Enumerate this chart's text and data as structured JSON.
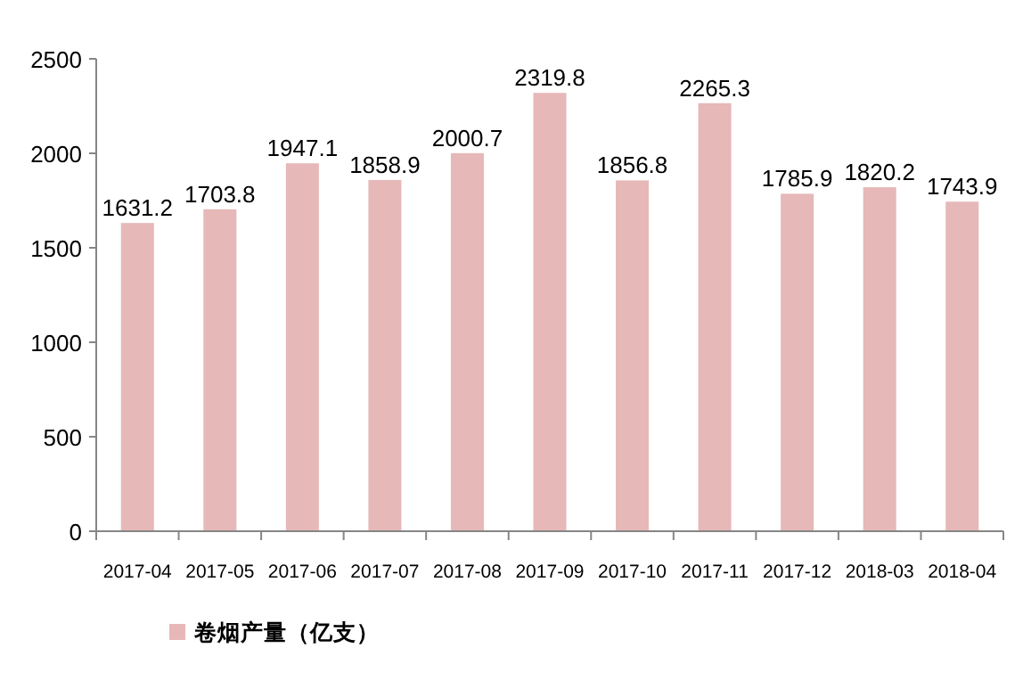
{
  "chart_data": {
    "type": "bar",
    "categories": [
      "2017-04",
      "2017-05",
      "2017-06",
      "2017-07",
      "2017-08",
      "2017-09",
      "2017-10",
      "2017-11",
      "2017-12",
      "2018-03",
      "2018-04"
    ],
    "series": [
      {
        "name": "卷烟产量（亿支）",
        "color": "#e6b8b7",
        "values": [
          1631.2,
          1703.8,
          1947.1,
          1858.9,
          2000.7,
          2319.8,
          1856.8,
          2265.3,
          1785.9,
          1820.2,
          1743.9
        ]
      }
    ],
    "ylim": [
      0,
      2500
    ],
    "yticks": [
      0,
      500,
      1000,
      1500,
      2000,
      2500
    ],
    "data_labels": true,
    "legend": "bottom left",
    "grid": false
  }
}
